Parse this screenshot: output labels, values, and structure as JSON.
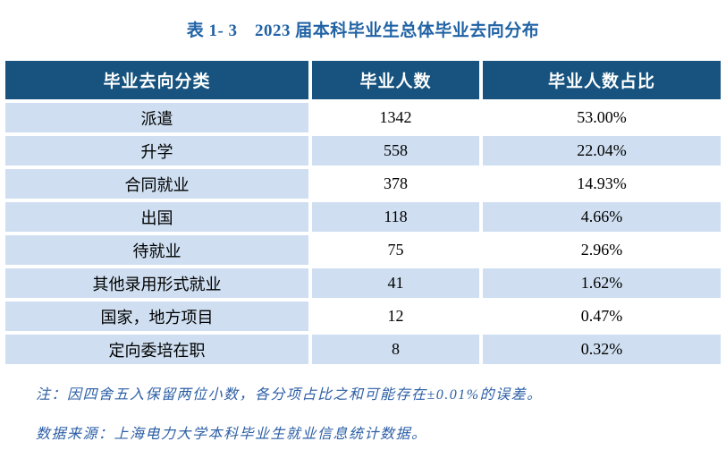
{
  "title": "表 1- 3　2023 届本科毕业生总体毕业去向分布",
  "colors": {
    "header_bg": "#17537E",
    "row_light_blue": "#CFDFF1",
    "row_white": "#FFFFFF",
    "title_blue": "#2163A5",
    "note_blue": "#2D5FA6",
    "body_text": "#000000"
  },
  "table": {
    "headers": [
      "毕业去向分类",
      "毕业人数",
      "毕业人数占比"
    ],
    "rows": [
      {
        "category": "派遣",
        "count": "1342",
        "percent": "53.00%"
      },
      {
        "category": "升学",
        "count": "558",
        "percent": "22.04%"
      },
      {
        "category": "合同就业",
        "count": "378",
        "percent": "14.93%"
      },
      {
        "category": "出国",
        "count": "118",
        "percent": "4.66%"
      },
      {
        "category": "待就业",
        "count": "75",
        "percent": "2.96%"
      },
      {
        "category": "其他录用形式就业",
        "count": "41",
        "percent": "1.62%"
      },
      {
        "category": "国家，地方项目",
        "count": "12",
        "percent": "0.47%"
      },
      {
        "category": "定向委培在职",
        "count": "8",
        "percent": "0.32%"
      }
    ]
  },
  "notes": {
    "note1": "注：因四舍五入保留两位小数，各分项占比之和可能存在±0.01%的误差。",
    "source": "数据来源：上海电力大学本科毕业生就业信息统计数据。"
  }
}
